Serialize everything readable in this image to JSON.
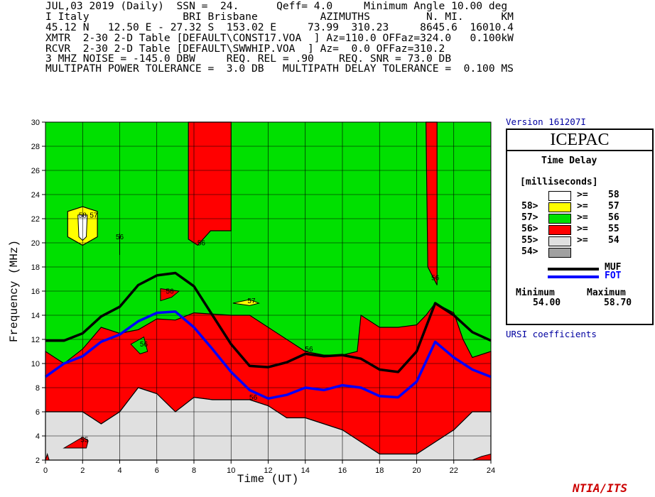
{
  "header": {
    "lines": [
      "JUL,03 2019 (Daily)  SSN =  24.      Qeff= 4.0     Minimum Angle 10.00 deg",
      "I Italy               BRI Brisbane          AZIMUTHS         N. MI.      KM",
      "45.12 N   12.50 E - 27.32 S  153.02 E     73.99  310.23     8645.6  16010.4",
      "XMTR  2-30 2-D Table [DEFAULT\\CONST17.VOA  ] Az=110.0 OFFaz=324.0   0.100kW",
      "RCVR  2-30 2-D Table [DEFAULT\\SWWHIP.VOA  ] Az=  0.0 OFFaz=310.2",
      "3 MHZ NOISE = -145.0 DBW     REQ. REL = .90    REQ. SNR = 73.0 DB",
      "MULTIPATH POWER TOLERANCE =  3.0 DB   MULTIPATH DELAY TOLERANCE =  0.100 MS"
    ]
  },
  "version": "Version 161207I",
  "program": "ICEPAC",
  "ursi": "URSI coefficients",
  "logo": "NTIA/ITS",
  "legend": {
    "title": "Time Delay",
    "units": "[milliseconds]",
    "rows": [
      {
        "lo": "",
        "hi": "58",
        "color": "#ffffff"
      },
      {
        "lo": "58>",
        "hi": "57",
        "color": "#ffff00"
      },
      {
        "lo": "57>",
        "hi": "56",
        "color": "#00e000"
      },
      {
        "lo": "56>",
        "hi": "55",
        "color": "#ff0000"
      },
      {
        "lo": "55>",
        "hi": "54",
        "color": "#e0e0e0"
      },
      {
        "lo": "54>",
        "hi": "",
        "color": "#a0a0a0"
      }
    ],
    "ge": ">=",
    "muf": "MUF",
    "fot": "FOT",
    "min_label": "Minimum",
    "max_label": "Maximum",
    "min_value": "54.00",
    "max_value": "58.70"
  },
  "chart_data": {
    "type": "area",
    "xlabel": "Time (UT)",
    "ylabel": "Frequency (MHz)",
    "xlim": [
      0,
      24
    ],
    "ylim": [
      2,
      30
    ],
    "xticks": [
      "0",
      "2",
      "4",
      "6",
      "8",
      "10",
      "12",
      "14",
      "16",
      "18",
      "20",
      "22",
      "24"
    ],
    "yticks": [
      "2",
      "4",
      "6",
      "8",
      "10",
      "12",
      "14",
      "16",
      "18",
      "20",
      "22",
      "24",
      "26",
      "28",
      "30"
    ],
    "grid": true,
    "contour_labels": [
      {
        "text": "58",
        "x": 2.0,
        "y": 22.1
      },
      {
        "text": "57",
        "x": 2.6,
        "y": 22.1
      },
      {
        "text": "56",
        "x": 4.0,
        "y": 20.3
      },
      {
        "text": "56",
        "x": 8.4,
        "y": 19.8
      },
      {
        "text": "56",
        "x": 6.7,
        "y": 15.8
      },
      {
        "text": "57",
        "x": 11.1,
        "y": 15.0
      },
      {
        "text": "56",
        "x": 5.3,
        "y": 11.4
      },
      {
        "text": "56",
        "x": 14.2,
        "y": 11.0
      },
      {
        "text": "56",
        "x": 21.0,
        "y": 16.9
      },
      {
        "text": "55",
        "x": 2.1,
        "y": 3.5
      },
      {
        "text": "56",
        "x": 11.2,
        "y": 7.0
      }
    ],
    "series": [
      {
        "name": "MUF",
        "color": "#000000",
        "x": [
          0,
          1,
          2,
          3,
          4,
          5,
          6,
          7,
          8,
          9,
          10,
          11,
          12,
          13,
          14,
          15,
          16,
          17,
          18,
          19,
          20,
          21,
          22,
          23,
          24
        ],
        "values": [
          11.9,
          11.9,
          12.5,
          13.9,
          14.7,
          16.5,
          17.3,
          17.5,
          16.4,
          14.0,
          11.6,
          9.8,
          9.7,
          10.1,
          10.8,
          10.6,
          10.7,
          10.4,
          9.5,
          9.3,
          11.0,
          15.0,
          14.0,
          12.6,
          11.9
        ]
      },
      {
        "name": "FOT",
        "color": "#0000ff",
        "x": [
          0,
          1,
          2,
          3,
          4,
          5,
          6,
          7,
          8,
          9,
          10,
          11,
          12,
          13,
          14,
          15,
          16,
          17,
          18,
          19,
          20,
          21,
          22,
          23,
          24
        ],
        "values": [
          8.9,
          10.0,
          10.6,
          11.8,
          12.4,
          13.5,
          14.2,
          14.3,
          13.0,
          11.2,
          9.3,
          7.8,
          7.1,
          7.4,
          8.0,
          7.8,
          8.2,
          8.0,
          7.3,
          7.2,
          8.5,
          11.8,
          10.5,
          9.5,
          8.9
        ]
      }
    ]
  }
}
